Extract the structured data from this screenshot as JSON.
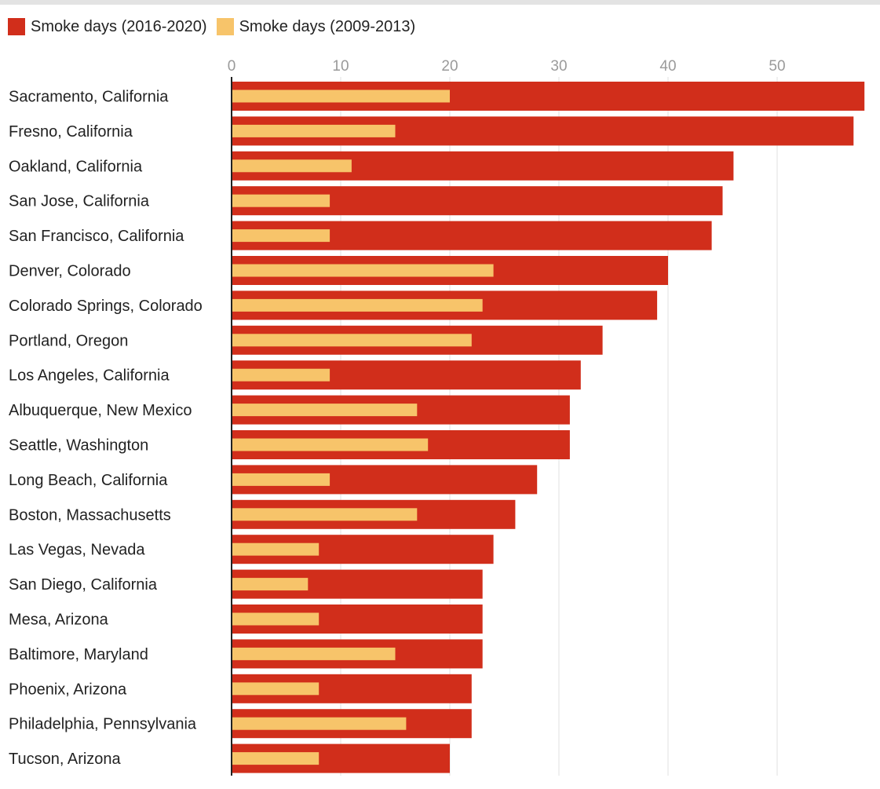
{
  "legend": [
    {
      "label": "Smoke days (2016-2020)",
      "color": "#d12e1b"
    },
    {
      "label": "Smoke days (2009-2013)",
      "color": "#f7c46a"
    }
  ],
  "chart_data": {
    "type": "bar",
    "orientation": "horizontal",
    "title": "",
    "xlabel": "",
    "ylabel": "",
    "xlim": [
      0,
      58
    ],
    "xticks": [
      0,
      10,
      20,
      30,
      40,
      50
    ],
    "grid": true,
    "legend_position": "top-left",
    "categories": [
      "Sacramento, California",
      "Fresno, California",
      "Oakland, California",
      "San Jose, California",
      "San Francisco, California",
      "Denver, Colorado",
      "Colorado Springs, Colorado",
      "Portland, Oregon",
      "Los Angeles, California",
      "Albuquerque, New Mexico",
      "Seattle, Washington",
      "Long Beach, California",
      "Boston, Massachusetts",
      "Las Vegas, Nevada",
      "San Diego, California",
      "Mesa, Arizona",
      "Baltimore, Maryland",
      "Phoenix, Arizona",
      "Philadelphia, Pennsylvania",
      "Tucson, Arizona"
    ],
    "series": [
      {
        "name": "Smoke days (2016-2020)",
        "color": "#d12e1b",
        "values": [
          58,
          57,
          46,
          45,
          44,
          40,
          39,
          34,
          32,
          31,
          31,
          28,
          26,
          24,
          23,
          23,
          23,
          22,
          22,
          20
        ]
      },
      {
        "name": "Smoke days (2009-2013)",
        "color": "#f7c46a",
        "values": [
          20,
          15,
          11,
          9,
          9,
          24,
          23,
          22,
          9,
          17,
          18,
          9,
          17,
          8,
          7,
          8,
          15,
          8,
          16,
          8
        ]
      }
    ]
  }
}
